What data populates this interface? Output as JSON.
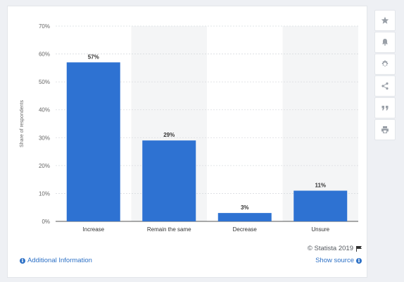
{
  "chart_data": {
    "type": "bar",
    "categories": [
      "Increase",
      "Remain the same",
      "Decrease",
      "Unsure"
    ],
    "values": [
      57,
      29,
      3,
      11
    ],
    "value_labels": [
      "57%",
      "29%",
      "3%",
      "11%"
    ],
    "title": "",
    "xlabel": "",
    "ylabel": "Share of respondents",
    "ylim": [
      0,
      70
    ],
    "yticks": [
      0,
      10,
      20,
      30,
      40,
      50,
      60,
      70
    ],
    "ytick_labels": [
      "0%",
      "10%",
      "20%",
      "30%",
      "40%",
      "50%",
      "60%",
      "70%"
    ],
    "grid": true,
    "bar_color": "#2e72d2"
  },
  "footer": {
    "credit": "© Statista 2019",
    "additional_info": "Additional Information",
    "show_source": "Show source"
  },
  "toolbar": {
    "icons": [
      "star-icon",
      "bell-icon",
      "gear-icon",
      "share-icon",
      "quote-icon",
      "print-icon"
    ]
  },
  "colors": {
    "link": "#2d71c6",
    "band": "#f4f5f6"
  }
}
